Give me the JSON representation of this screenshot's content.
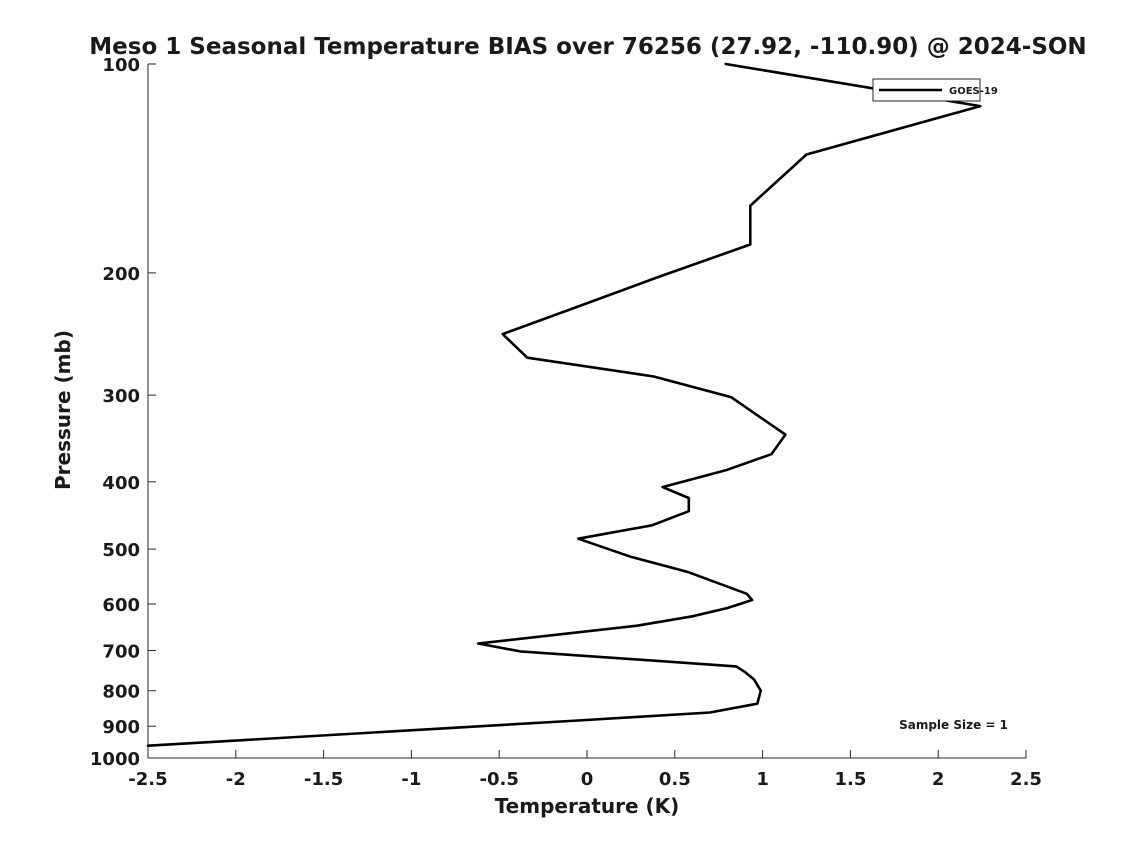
{
  "chart_data": {
    "type": "line",
    "title": "Meso 1 Seasonal Temperature BIAS over 76256 (27.92, -110.90) @ 2024-SON",
    "xlabel": "Temperature (K)",
    "ylabel": "Pressure (mb)",
    "xlim": [
      -2.5,
      2.5
    ],
    "ylim": [
      100,
      1000
    ],
    "y_scale": "log",
    "y_reversed": true,
    "grid": false,
    "legend_position": "top-right",
    "x_ticks": [
      -2.5,
      -2,
      -1.5,
      -1,
      -0.5,
      0,
      0.5,
      1,
      1.5,
      2,
      2.5
    ],
    "x_tick_labels": [
      "-2.5",
      "-2",
      "-1.5",
      "-1",
      "-0.5",
      "0",
      "0.5",
      "1",
      "1.5",
      "2",
      "2.5"
    ],
    "y_ticks": [
      100,
      200,
      300,
      400,
      500,
      600,
      700,
      800,
      900,
      1000
    ],
    "y_tick_labels": [
      "100",
      "200",
      "300",
      "400",
      "500",
      "600",
      "700",
      "800",
      "900",
      "1000"
    ],
    "annotation": "Sample Size = 1",
    "series": [
      {
        "name": "GOES-19",
        "color": "#000000",
        "points": [
          {
            "x": 0.79,
            "p": 100
          },
          {
            "x": 2.24,
            "p": 115
          },
          {
            "x": 1.25,
            "p": 135
          },
          {
            "x": 0.93,
            "p": 160
          },
          {
            "x": 0.93,
            "p": 182
          },
          {
            "x": 0.4,
            "p": 203
          },
          {
            "x": -0.08,
            "p": 225
          },
          {
            "x": -0.48,
            "p": 245
          },
          {
            "x": -0.34,
            "p": 265
          },
          {
            "x": 0.38,
            "p": 282
          },
          {
            "x": 0.82,
            "p": 302
          },
          {
            "x": 1.13,
            "p": 342
          },
          {
            "x": 1.05,
            "p": 365
          },
          {
            "x": 0.79,
            "p": 385
          },
          {
            "x": 0.43,
            "p": 407
          },
          {
            "x": 0.58,
            "p": 422
          },
          {
            "x": 0.58,
            "p": 441
          },
          {
            "x": 0.37,
            "p": 462
          },
          {
            "x": -0.05,
            "p": 483
          },
          {
            "x": 0.25,
            "p": 513
          },
          {
            "x": 0.58,
            "p": 540
          },
          {
            "x": 0.91,
            "p": 580
          },
          {
            "x": 0.94,
            "p": 592
          },
          {
            "x": 0.8,
            "p": 608
          },
          {
            "x": 0.6,
            "p": 625
          },
          {
            "x": 0.28,
            "p": 645
          },
          {
            "x": -0.62,
            "p": 684
          },
          {
            "x": -0.38,
            "p": 702
          },
          {
            "x": 0.85,
            "p": 738
          },
          {
            "x": 0.9,
            "p": 752
          },
          {
            "x": 0.95,
            "p": 770
          },
          {
            "x": 0.99,
            "p": 800
          },
          {
            "x": 0.97,
            "p": 835
          },
          {
            "x": 0.7,
            "p": 860
          },
          {
            "x": -0.05,
            "p": 883
          },
          {
            "x": -2.5,
            "p": 960
          }
        ]
      }
    ]
  }
}
